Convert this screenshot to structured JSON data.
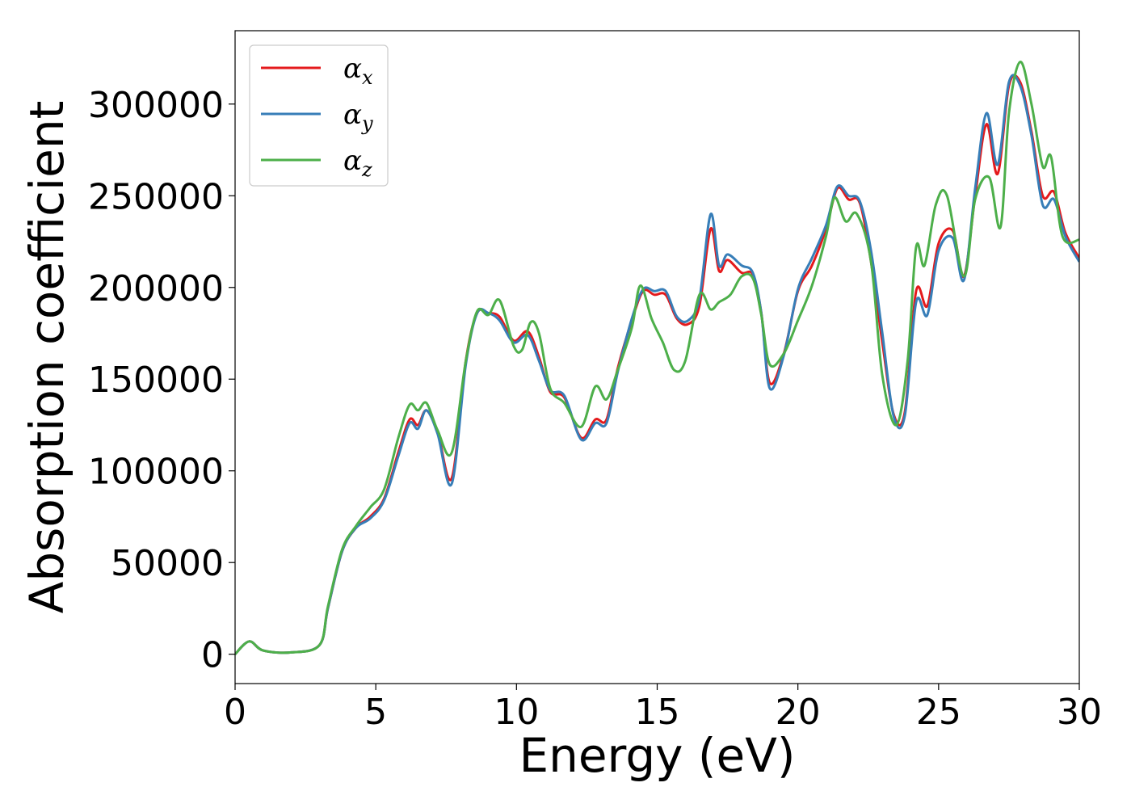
{
  "chart_data": {
    "type": "line",
    "xlabel": "Energy (eV)",
    "ylabel": "Absorption coefficient",
    "xlim": [
      0,
      30
    ],
    "ylim": [
      -16000,
      340000
    ],
    "xticks": [
      "0",
      "5",
      "10",
      "15",
      "20",
      "25",
      "30"
    ],
    "yticks": [
      "0",
      "50000",
      "100000",
      "150000",
      "200000",
      "250000",
      "300000"
    ],
    "grid": false,
    "legend_position": "top-left",
    "series": [
      {
        "name": "αx",
        "legend_symbol": "α",
        "legend_subscript": "x",
        "color": "#e41a1c",
        "x": [
          0,
          0.5,
          1,
          2,
          3,
          3.3,
          3.8,
          4.3,
          4.8,
          5.3,
          5.8,
          6.2,
          6.5,
          6.8,
          7.2,
          7.7,
          8.2,
          8.6,
          9.0,
          9.4,
          9.9,
          10.4,
          10.8,
          11.2,
          11.7,
          12.3,
          12.8,
          13.2,
          13.6,
          14.1,
          14.5,
          14.9,
          15.3,
          15.7,
          16.1,
          16.5,
          16.9,
          17.2,
          17.5,
          18.0,
          18.4,
          18.7,
          19.0,
          19.5,
          20.0,
          20.5,
          21.0,
          21.4,
          21.8,
          22.2,
          22.6,
          23.0,
          23.4,
          23.8,
          24.2,
          24.6,
          25.0,
          25.5,
          25.9,
          26.3,
          26.7,
          27.1,
          27.5,
          27.9,
          28.3,
          28.7,
          29.1,
          29.5,
          30.0
        ],
        "y": [
          0,
          7000,
          2000,
          1000,
          5000,
          25000,
          56000,
          69000,
          75000,
          85000,
          110000,
          128000,
          125000,
          133000,
          121000,
          96000,
          160000,
          186000,
          186000,
          184000,
          171000,
          176000,
          162000,
          143000,
          140000,
          118000,
          128000,
          128000,
          156000,
          182000,
          198000,
          196000,
          196000,
          183000,
          180000,
          190000,
          232000,
          209000,
          215000,
          208000,
          207000,
          186000,
          148000,
          164000,
          198000,
          212000,
          232000,
          254000,
          248000,
          246000,
          214000,
          170000,
          131000,
          132000,
          198000,
          190000,
          224000,
          231000,
          206000,
          250000,
          289000,
          262000,
          310000,
          312000,
          285000,
          250000,
          252000,
          230000,
          216000
        ]
      },
      {
        "name": "αy",
        "legend_symbol": "α",
        "legend_subscript": "y",
        "color": "#377eb8",
        "x": [
          0,
          0.5,
          1,
          2,
          3,
          3.3,
          3.8,
          4.3,
          4.8,
          5.3,
          5.8,
          6.2,
          6.5,
          6.8,
          7.2,
          7.7,
          8.2,
          8.6,
          9.0,
          9.4,
          9.9,
          10.4,
          10.8,
          11.2,
          11.7,
          12.3,
          12.8,
          13.2,
          13.6,
          14.1,
          14.5,
          14.9,
          15.3,
          15.7,
          16.1,
          16.5,
          16.9,
          17.2,
          17.5,
          18.0,
          18.4,
          18.7,
          19.0,
          19.5,
          20.0,
          20.5,
          21.0,
          21.4,
          21.8,
          22.2,
          22.6,
          23.0,
          23.4,
          23.8,
          24.2,
          24.6,
          25.0,
          25.5,
          25.9,
          26.3,
          26.7,
          27.1,
          27.5,
          27.9,
          28.3,
          28.7,
          29.1,
          29.5,
          30.0
        ],
        "y": [
          0,
          7000,
          2000,
          1000,
          5000,
          25000,
          56000,
          69000,
          74000,
          84000,
          108000,
          126000,
          123000,
          133000,
          120000,
          93000,
          158000,
          186000,
          186000,
          182000,
          170000,
          174000,
          160000,
          144000,
          141000,
          117000,
          126000,
          126000,
          154000,
          183000,
          199000,
          198000,
          198000,
          184000,
          182000,
          194000,
          240000,
          212000,
          218000,
          212000,
          208000,
          186000,
          145000,
          163000,
          199000,
          216000,
          234000,
          255000,
          250000,
          247000,
          220000,
          175000,
          130000,
          130000,
          192000,
          185000,
          220000,
          227000,
          204000,
          254000,
          295000,
          267000,
          312000,
          310000,
          283000,
          245000,
          248000,
          228000,
          214000
        ]
      },
      {
        "name": "αz",
        "legend_symbol": "α",
        "legend_subscript": "z",
        "color": "#4daf4a",
        "x": [
          0,
          0.5,
          1,
          2,
          3,
          3.3,
          3.8,
          4.3,
          4.8,
          5.3,
          5.8,
          6.2,
          6.5,
          6.8,
          7.2,
          7.7,
          8.2,
          8.6,
          9.0,
          9.4,
          9.9,
          10.2,
          10.5,
          10.8,
          11.2,
          11.7,
          12.3,
          12.8,
          13.2,
          13.6,
          14.1,
          14.4,
          14.8,
          15.2,
          15.6,
          16.0,
          16.5,
          16.9,
          17.2,
          17.6,
          18.0,
          18.4,
          18.7,
          19.0,
          19.5,
          20.0,
          20.5,
          21.0,
          21.3,
          21.7,
          22.1,
          22.6,
          23.0,
          23.5,
          23.9,
          24.2,
          24.5,
          24.9,
          25.3,
          25.9,
          26.3,
          26.8,
          27.2,
          27.5,
          27.9,
          28.3,
          28.7,
          29.0,
          29.4,
          30.0
        ],
        "y": [
          0,
          7000,
          2000,
          1000,
          5000,
          26000,
          57000,
          70000,
          80000,
          90000,
          118000,
          136000,
          133000,
          137000,
          122000,
          110000,
          160000,
          187000,
          185000,
          193000,
          168000,
          166000,
          181000,
          175000,
          145000,
          137000,
          124000,
          146000,
          139000,
          155000,
          178000,
          201000,
          183000,
          170000,
          155000,
          160000,
          196000,
          188000,
          192000,
          196000,
          206000,
          205000,
          185000,
          158000,
          164000,
          182000,
          201000,
          228000,
          249000,
          236000,
          240000,
          214000,
          152000,
          125000,
          160000,
          222000,
          212000,
          245000,
          250000,
          206000,
          248000,
          260000,
          233000,
          295000,
          323000,
          300000,
          266000,
          271000,
          228000,
          226000
        ]
      }
    ]
  }
}
